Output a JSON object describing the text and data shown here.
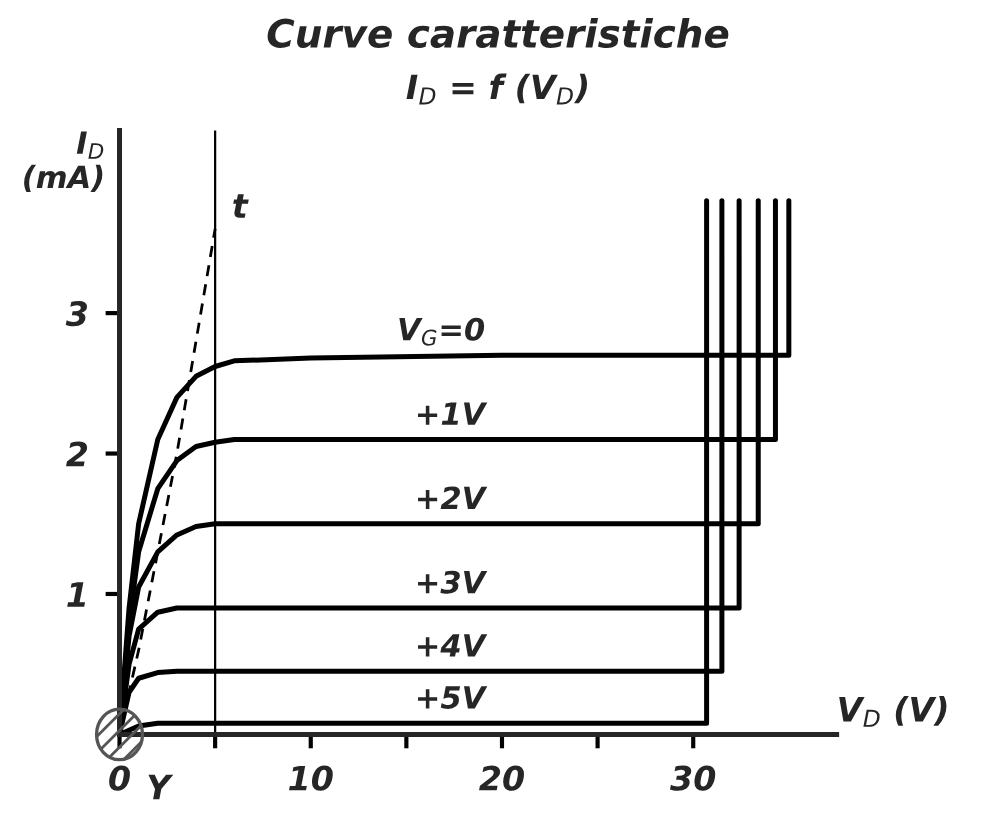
{
  "chart_data": {
    "type": "line",
    "title": "Curve caratteristiche",
    "subtitle": "I$_{D}$ = f (V$_{D}$)",
    "xlabel": "V$_{D}$ (V)",
    "ylabel": "I$_{D}$\n(mA)",
    "xlim": [
      0,
      37.5
    ],
    "ylim": [
      0,
      4.3
    ],
    "xticks": [
      0,
      {
        "value": 5,
        "label": null
      },
      10,
      {
        "value": 15,
        "label": null
      },
      20,
      {
        "value": 25,
        "label": null
      },
      30
    ],
    "yticks": [
      1,
      2,
      3
    ],
    "grid": false,
    "legend": false,
    "marker": "none",
    "ref_lines": [
      {
        "axis": "x",
        "value": 5,
        "color": "#000000",
        "line_style": "solid"
      }
    ],
    "annotations": [
      "Y"
    ],
    "series": [
      {
        "name": "V$_{G}$=0",
        "color": "#000000",
        "x": [
          0,
          0.5,
          1,
          2,
          3,
          4,
          5,
          6,
          10,
          20,
          35,
          35
        ],
        "values": [
          0,
          0.9,
          1.5,
          2.1,
          2.4,
          2.55,
          2.62,
          2.66,
          2.68,
          2.7,
          2.7,
          3.8
        ]
      },
      {
        "name": "+1V",
        "color": "#000000",
        "x": [
          0,
          0.5,
          1,
          2,
          3,
          4,
          5,
          6,
          10,
          20,
          34.3,
          34.3
        ],
        "values": [
          0,
          0.8,
          1.3,
          1.75,
          1.95,
          2.05,
          2.08,
          2.1,
          2.1,
          2.1,
          2.1,
          3.8
        ]
      },
      {
        "name": "+2V",
        "color": "#000000",
        "x": [
          0,
          0.5,
          1,
          2,
          3,
          4,
          5,
          6,
          10,
          20,
          33.4,
          33.4
        ],
        "values": [
          0,
          0.7,
          1.05,
          1.3,
          1.42,
          1.48,
          1.5,
          1.5,
          1.5,
          1.5,
          1.5,
          3.8
        ]
      },
      {
        "name": "+3V",
        "color": "#000000",
        "x": [
          0,
          0.5,
          1,
          2,
          3,
          4,
          5,
          10,
          20,
          32.4,
          32.4
        ],
        "values": [
          0,
          0.5,
          0.75,
          0.87,
          0.9,
          0.9,
          0.9,
          0.9,
          0.9,
          0.9,
          3.8
        ]
      },
      {
        "name": "+4V",
        "color": "#000000",
        "x": [
          0,
          0.5,
          1,
          2,
          3,
          5,
          10,
          20,
          31.5,
          31.5
        ],
        "values": [
          0,
          0.3,
          0.4,
          0.44,
          0.45,
          0.45,
          0.45,
          0.45,
          0.45,
          3.8
        ]
      },
      {
        "name": "+5V",
        "color": "#000000",
        "x": [
          0,
          1,
          2,
          5,
          10,
          20,
          30.7,
          30.7
        ],
        "values": [
          0,
          0.06,
          0.08,
          0.08,
          0.08,
          0.08,
          0.08,
          3.8
        ]
      },
      {
        "name": "t",
        "color": "#000000",
        "line_style": "dashed",
        "x": [
          0,
          1,
          2,
          3,
          4,
          5
        ],
        "values": [
          0,
          0.6,
          1.3,
          2.0,
          2.8,
          3.6
        ]
      }
    ]
  }
}
